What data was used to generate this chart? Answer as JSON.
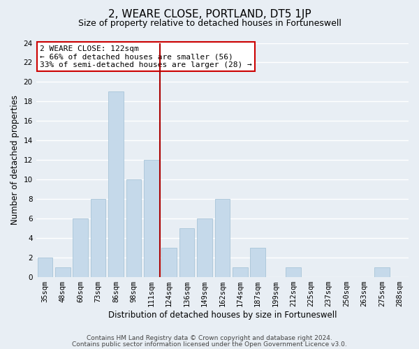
{
  "title": "2, WEARE CLOSE, PORTLAND, DT5 1JP",
  "subtitle": "Size of property relative to detached houses in Fortuneswell",
  "bar_labels": [
    "35sqm",
    "48sqm",
    "60sqm",
    "73sqm",
    "86sqm",
    "98sqm",
    "111sqm",
    "124sqm",
    "136sqm",
    "149sqm",
    "162sqm",
    "174sqm",
    "187sqm",
    "199sqm",
    "212sqm",
    "225sqm",
    "237sqm",
    "250sqm",
    "263sqm",
    "275sqm",
    "288sqm"
  ],
  "bar_values": [
    2,
    1,
    6,
    8,
    19,
    10,
    12,
    3,
    5,
    6,
    8,
    1,
    3,
    0,
    1,
    0,
    0,
    0,
    0,
    1,
    0
  ],
  "bar_color": "#c5d9ea",
  "bar_edge_color": "#a8c4d8",
  "vline_color": "#aa0000",
  "xlabel": "Distribution of detached houses by size in Fortuneswell",
  "ylabel": "Number of detached properties",
  "ylim": [
    0,
    24
  ],
  "yticks": [
    0,
    2,
    4,
    6,
    8,
    10,
    12,
    14,
    16,
    18,
    20,
    22,
    24
  ],
  "annotation_title": "2 WEARE CLOSE: 122sqm",
  "annotation_line1": "← 66% of detached houses are smaller (56)",
  "annotation_line2": "33% of semi-detached houses are larger (28) →",
  "annotation_box_color": "#ffffff",
  "annotation_box_edge": "#cc0000",
  "footer1": "Contains HM Land Registry data © Crown copyright and database right 2024.",
  "footer2": "Contains public sector information licensed under the Open Government Licence v3.0.",
  "bg_color": "#e8eef4",
  "grid_color": "#ffffff",
  "title_fontsize": 11,
  "subtitle_fontsize": 9,
  "axis_label_fontsize": 8.5,
  "tick_fontsize": 7.5,
  "annotation_fontsize": 8,
  "footer_fontsize": 6.5
}
